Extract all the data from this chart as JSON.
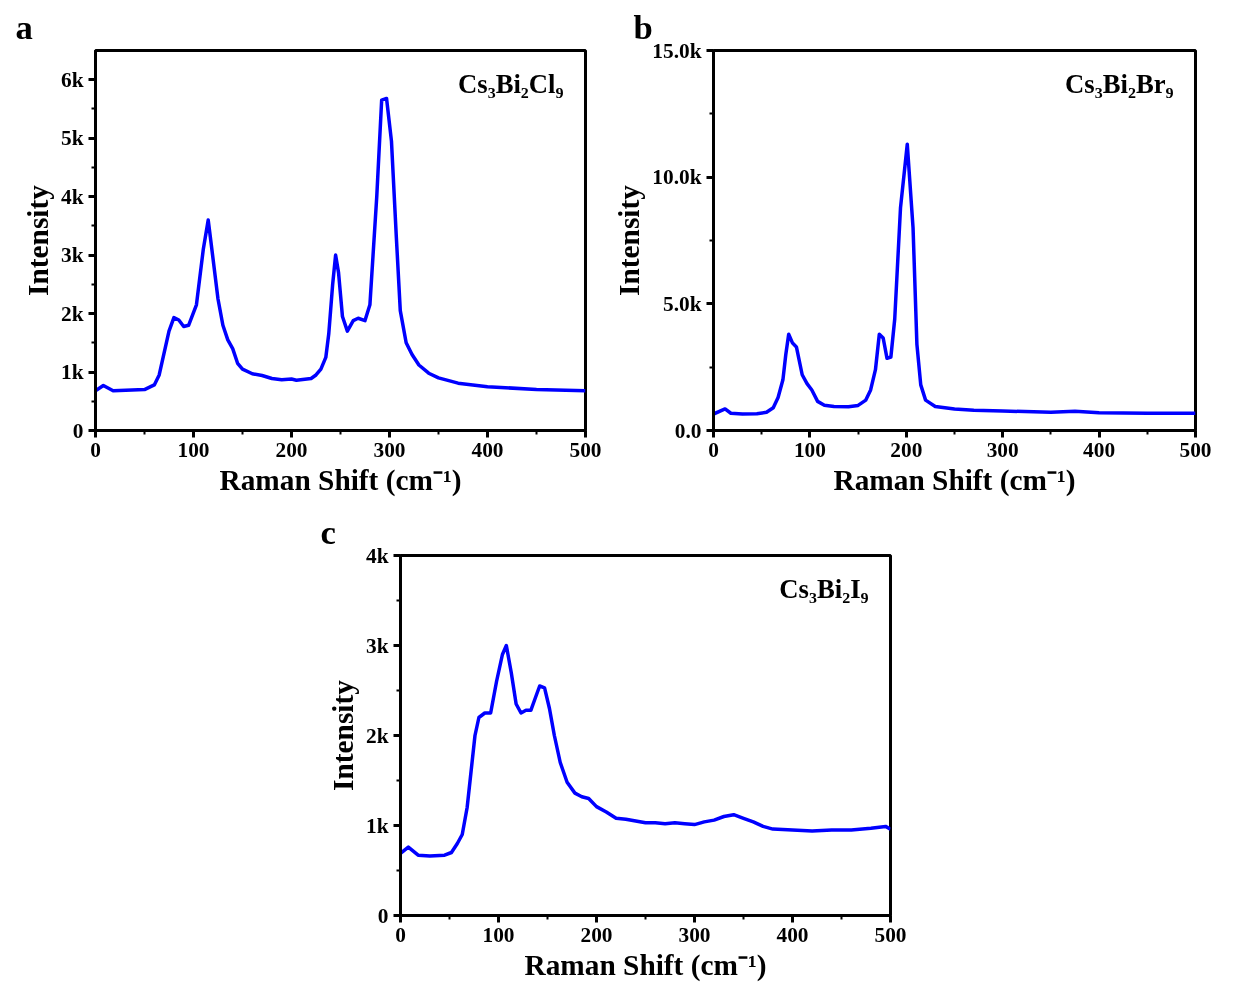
{
  "chart_data": [
    {
      "type": "line",
      "title": "a",
      "xlabel": "Raman Shift (cm⁻¹)",
      "ylabel": "Intensity",
      "annotations": [
        "Cs₃Bi₂Cl₉"
      ],
      "grid": false,
      "xlim": [
        0,
        500
      ],
      "ylim": [
        0,
        6500
      ],
      "xticks": [
        0,
        100,
        200,
        300,
        400,
        500
      ],
      "yticks": [
        0,
        {
          "value": 1000,
          "label": "1k"
        },
        {
          "value": 2000,
          "label": "2k"
        },
        {
          "value": 3000,
          "label": "3k"
        },
        {
          "value": 4000,
          "label": "4k"
        },
        {
          "value": 5000,
          "label": "5k"
        },
        {
          "value": 6000,
          "label": "6k"
        }
      ],
      "series": [
        {
          "color": "#0000ff",
          "x": [
            0,
            8,
            18,
            50,
            60,
            65,
            75,
            80,
            85,
            90,
            95,
            103,
            110,
            115,
            118,
            125,
            130,
            135,
            140,
            145,
            150,
            160,
            170,
            180,
            190,
            200,
            205,
            220,
            225,
            230,
            235,
            238,
            242,
            245,
            248,
            252,
            257,
            263,
            268,
            275,
            280,
            287,
            292,
            297,
            302,
            307,
            311,
            317,
            323,
            330,
            340,
            350,
            370,
            400,
            450,
            500
          ],
          "values": [
            680,
            770,
            680,
            700,
            780,
            950,
            1700,
            1930,
            1890,
            1780,
            1800,
            2150,
            3100,
            3600,
            3200,
            2250,
            1800,
            1550,
            1400,
            1150,
            1050,
            970,
            940,
            890,
            870,
            880,
            860,
            890,
            950,
            1050,
            1250,
            1650,
            2500,
            3000,
            2700,
            1950,
            1700,
            1880,
            1920,
            1880,
            2150,
            4000,
            5650,
            5680,
            4950,
            3300,
            2050,
            1500,
            1300,
            1120,
            980,
            900,
            810,
            750,
            700,
            680
          ]
        }
      ]
    },
    {
      "type": "line",
      "title": "b",
      "xlabel": "Raman Shift (cm⁻¹)",
      "ylabel": "Intensity",
      "annotations": [
        "Cs₃Bi₂Br₉"
      ],
      "grid": false,
      "xlim": [
        0,
        500
      ],
      "ylim": [
        0,
        15000
      ],
      "xticks": [
        0,
        100,
        200,
        300,
        400,
        500
      ],
      "yticks": [
        {
          "value": 0,
          "label": "0.0"
        },
        {
          "value": 5000,
          "label": "5.0k"
        },
        {
          "value": 10000,
          "label": "10.0k"
        },
        {
          "value": 15000,
          "label": "15.0k"
        }
      ],
      "series": [
        {
          "color": "#0000ff",
          "x": [
            0,
            12,
            18,
            30,
            45,
            55,
            62,
            67,
            72,
            75,
            78,
            82,
            86,
            92,
            97,
            102,
            108,
            115,
            125,
            140,
            150,
            158,
            163,
            168,
            172,
            176,
            180,
            184,
            188,
            194,
            201,
            207,
            211,
            215,
            220,
            230,
            250,
            270,
            300,
            350,
            375,
            400,
            450,
            500
          ],
          "values": [
            650,
            850,
            680,
            650,
            660,
            720,
            900,
            1300,
            2000,
            3000,
            3800,
            3450,
            3300,
            2200,
            1850,
            1600,
            1150,
            1000,
            950,
            940,
            990,
            1200,
            1600,
            2400,
            3800,
            3650,
            2850,
            2900,
            4400,
            8800,
            11300,
            8000,
            3400,
            1800,
            1200,
            950,
            850,
            800,
            770,
            720,
            760,
            700,
            680,
            680
          ]
        }
      ]
    },
    {
      "type": "line",
      "title": "c",
      "xlabel": "Raman Shift (cm⁻¹)",
      "ylabel": "Intensity",
      "annotations": [
        "Cs₃Bi₂I₉"
      ],
      "grid": false,
      "xlim": [
        0,
        500
      ],
      "ylim": [
        0,
        4000
      ],
      "xticks": [
        0,
        100,
        200,
        300,
        400,
        500
      ],
      "yticks": [
        0,
        {
          "value": 1000,
          "label": "1k"
        },
        {
          "value": 2000,
          "label": "2k"
        },
        {
          "value": 3000,
          "label": "3k"
        },
        {
          "value": 4000,
          "label": "4k"
        }
      ],
      "series": [
        {
          "color": "#0000ff",
          "x": [
            0,
            8,
            18,
            30,
            45,
            52,
            58,
            63,
            68,
            72,
            76,
            80,
            86,
            92,
            98,
            104,
            108,
            113,
            118,
            123,
            128,
            133,
            137,
            142,
            147,
            152,
            157,
            163,
            170,
            178,
            185,
            192,
            200,
            210,
            220,
            230,
            240,
            250,
            260,
            270,
            280,
            290,
            300,
            310,
            320,
            330,
            340,
            350,
            360,
            370,
            380,
            400,
            420,
            440,
            460,
            480,
            495,
            500
          ],
          "values": [
            690,
            760,
            670,
            660,
            670,
            700,
            800,
            900,
            1200,
            1600,
            2000,
            2200,
            2250,
            2250,
            2600,
            2900,
            3000,
            2700,
            2350,
            2250,
            2280,
            2280,
            2400,
            2550,
            2530,
            2300,
            2000,
            1700,
            1480,
            1360,
            1320,
            1300,
            1210,
            1150,
            1080,
            1070,
            1050,
            1030,
            1030,
            1020,
            1030,
            1020,
            1010,
            1040,
            1060,
            1100,
            1120,
            1080,
            1040,
            990,
            960,
            950,
            940,
            950,
            950,
            970,
            990,
            960
          ]
        }
      ]
    }
  ]
}
